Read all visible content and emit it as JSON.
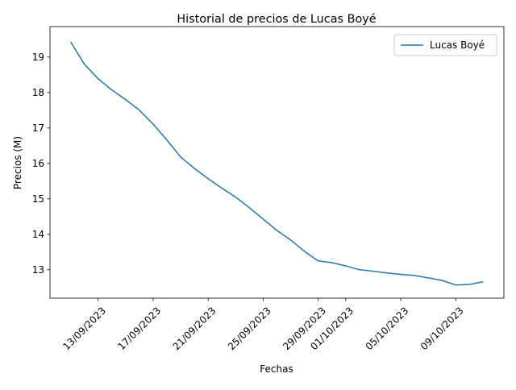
{
  "chart_data": {
    "type": "line",
    "title": "Historial de precios de Lucas Boyé",
    "xlabel": "Fechas",
    "ylabel": "Precios (M)",
    "x": [
      "11/09/2023",
      "12/09/2023",
      "13/09/2023",
      "14/09/2023",
      "15/09/2023",
      "16/09/2023",
      "17/09/2023",
      "18/09/2023",
      "19/09/2023",
      "20/09/2023",
      "21/09/2023",
      "22/09/2023",
      "23/09/2023",
      "24/09/2023",
      "25/09/2023",
      "26/09/2023",
      "27/09/2023",
      "28/09/2023",
      "29/09/2023",
      "30/09/2023",
      "01/10/2023",
      "02/10/2023",
      "03/10/2023",
      "04/10/2023",
      "05/10/2023",
      "06/10/2023",
      "07/10/2023",
      "08/10/2023",
      "09/10/2023",
      "10/10/2023",
      "11/10/2023"
    ],
    "series": [
      {
        "name": "Lucas Boyé",
        "color": "#1f77b4",
        "values": [
          19.43,
          18.8,
          18.39,
          18.07,
          17.8,
          17.5,
          17.11,
          16.66,
          16.18,
          15.86,
          15.57,
          15.3,
          15.05,
          14.75,
          14.43,
          14.11,
          13.84,
          13.52,
          13.25,
          13.2,
          13.11,
          13.0,
          12.96,
          12.91,
          12.87,
          12.84,
          12.77,
          12.7,
          12.57,
          12.59,
          12.66
        ]
      }
    ],
    "ylim": [
      12.2,
      19.86
    ],
    "yticks": [
      13,
      14,
      15,
      16,
      17,
      18,
      19
    ],
    "xticks": [
      "13/09/2023",
      "17/09/2023",
      "21/09/2023",
      "25/09/2023",
      "29/09/2023",
      "01/10/2023",
      "05/10/2023",
      "09/10/2023"
    ],
    "legend": "upper right"
  }
}
